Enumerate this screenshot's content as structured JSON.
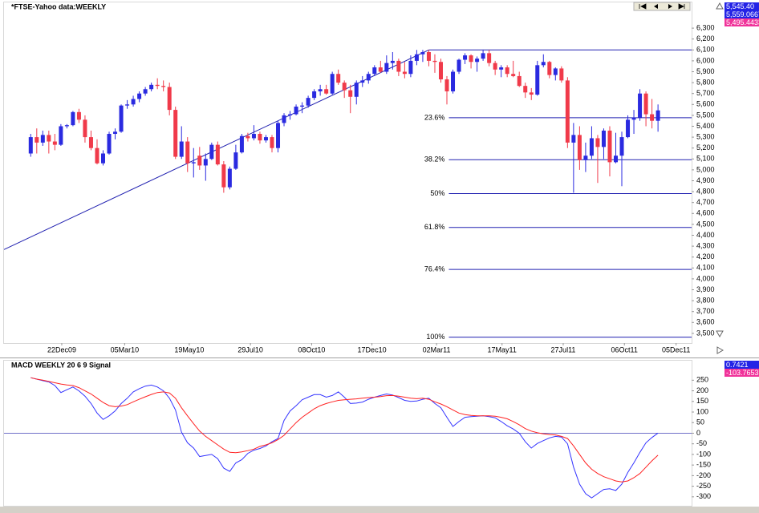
{
  "chart_data": {
    "type": "candlestick",
    "title": "*FTSE-Yahoo data:WEEKLY",
    "readouts": [
      {
        "label": "5,545.40",
        "color": "#2323e6"
      },
      {
        "label": "5,559.0667",
        "color": "#2323e6"
      },
      {
        "label": "5,495.4433",
        "color": "#f0339a"
      }
    ],
    "x": [
      "2009-11-16",
      "2009-11-23",
      "2009-11-30",
      "2009-12-07",
      "2009-12-14",
      "2009-12-21",
      "2009-12-28",
      "2010-01-04",
      "2010-01-11",
      "2010-01-18",
      "2010-01-25",
      "2010-02-01",
      "2010-02-08",
      "2010-02-15",
      "2010-02-22",
      "2010-03-01",
      "2010-03-08",
      "2010-03-15",
      "2010-03-22",
      "2010-03-29",
      "2010-04-05",
      "2010-04-12",
      "2010-04-19",
      "2010-04-26",
      "2010-05-03",
      "2010-05-10",
      "2010-05-17",
      "2010-05-24",
      "2010-05-31",
      "2010-06-07",
      "2010-06-14",
      "2010-06-21",
      "2010-06-28",
      "2010-07-05",
      "2010-07-12",
      "2010-07-19",
      "2010-07-26",
      "2010-08-02",
      "2010-08-09",
      "2010-08-16",
      "2010-08-23",
      "2010-08-30",
      "2010-09-06",
      "2010-09-13",
      "2010-09-20",
      "2010-09-27",
      "2010-10-04",
      "2010-10-11",
      "2010-10-18",
      "2010-10-25",
      "2010-11-01",
      "2010-11-08",
      "2010-11-15",
      "2010-11-22",
      "2010-11-29",
      "2010-12-06",
      "2010-12-13",
      "2010-12-20",
      "2010-12-27",
      "2011-01-03",
      "2011-01-10",
      "2011-01-17",
      "2011-01-24",
      "2011-01-31",
      "2011-02-07",
      "2011-02-14",
      "2011-02-21",
      "2011-02-28",
      "2011-03-07",
      "2011-03-14",
      "2011-03-21",
      "2011-03-28",
      "2011-04-04",
      "2011-04-11",
      "2011-04-18",
      "2011-04-25",
      "2011-05-02",
      "2011-05-09",
      "2011-05-16",
      "2011-05-23",
      "2011-05-30",
      "2011-06-06",
      "2011-06-13",
      "2011-06-20",
      "2011-06-27",
      "2011-07-04",
      "2011-07-11",
      "2011-07-18",
      "2011-07-25",
      "2011-08-01",
      "2011-08-08",
      "2011-08-15",
      "2011-08-22",
      "2011-08-29",
      "2011-09-05",
      "2011-09-12",
      "2011-09-19",
      "2011-09-26",
      "2011-10-03",
      "2011-10-10",
      "2011-10-17",
      "2011-10-24",
      "2011-10-31",
      "2011-11-07",
      "2011-11-14"
    ],
    "open": [
      5150,
      5300,
      5250,
      5320,
      5260,
      5230,
      5400,
      5410,
      5530,
      5460,
      5300,
      5200,
      5060,
      5150,
      5330,
      5350,
      5590,
      5600,
      5650,
      5700,
      5740,
      5780,
      5770,
      5760,
      5550,
      5120,
      5260,
      5060,
      5130,
      5040,
      5100,
      5230,
      5050,
      4840,
      5010,
      5160,
      5310,
      5290,
      5330,
      5270,
      5300,
      5200,
      5430,
      5500,
      5510,
      5580,
      5590,
      5660,
      5720,
      5740,
      5700,
      5880,
      5800,
      5730,
      5670,
      5800,
      5820,
      5880,
      5940,
      5900,
      5980,
      6000,
      5900,
      5880,
      6000,
      6060,
      6080,
      6000,
      5990,
      5830,
      5720,
      5900,
      6010,
      6050,
      5990,
      6020,
      6070,
      5980,
      5920,
      5940,
      5880,
      5860,
      5770,
      5710,
      5690,
      5960,
      5990,
      5870,
      5930,
      5820,
      5250,
      5320,
      5090,
      5130,
      5290,
      5210,
      5360,
      5070,
      5130,
      5300,
      5460,
      5480,
      5700,
      5510,
      5450
    ],
    "high": [
      5330,
      5380,
      5360,
      5360,
      5330,
      5420,
      5420,
      5540,
      5560,
      5500,
      5360,
      5280,
      5180,
      5350,
      5380,
      5600,
      5640,
      5680,
      5720,
      5760,
      5800,
      5840,
      5820,
      5800,
      5580,
      5400,
      5300,
      5200,
      5210,
      5150,
      5250,
      5260,
      5080,
      5030,
      5230,
      5330,
      5340,
      5410,
      5350,
      5320,
      5320,
      5450,
      5520,
      5540,
      5600,
      5620,
      5680,
      5740,
      5780,
      5780,
      5900,
      5920,
      5820,
      5780,
      5820,
      5860,
      5900,
      5960,
      6000,
      6050,
      6080,
      6020,
      5990,
      6050,
      6100,
      6100,
      6100,
      6060,
      6020,
      5860,
      5920,
      6020,
      6070,
      6060,
      6040,
      6100,
      6100,
      6000,
      5960,
      5960,
      6000,
      5900,
      5800,
      5750,
      6000,
      6060,
      6000,
      5940,
      5950,
      5850,
      5430,
      5400,
      5250,
      5400,
      5320,
      5380,
      5400,
      5340,
      5350,
      5500,
      5550,
      5740,
      5720,
      5650,
      5600
    ],
    "low": [
      5120,
      5150,
      5220,
      5150,
      5180,
      5220,
      5380,
      5400,
      5430,
      5250,
      5180,
      5050,
      5040,
      5140,
      5280,
      5340,
      5560,
      5580,
      5620,
      5680,
      5720,
      5740,
      5720,
      5500,
      5100,
      5100,
      4980,
      4930,
      5000,
      4900,
      5090,
      5040,
      4790,
      4820,
      5000,
      5150,
      5260,
      5270,
      5240,
      5250,
      5160,
      5160,
      5400,
      5460,
      5500,
      5520,
      5570,
      5640,
      5680,
      5690,
      5690,
      5780,
      5660,
      5520,
      5600,
      5760,
      5790,
      5860,
      5890,
      5880,
      5920,
      5860,
      5840,
      5850,
      5960,
      5990,
      5950,
      5890,
      5800,
      5600,
      5700,
      5880,
      5970,
      5930,
      5900,
      6000,
      5950,
      5870,
      5850,
      5850,
      5850,
      5760,
      5660,
      5640,
      5680,
      5940,
      5840,
      5820,
      5800,
      5200,
      4790,
      5000,
      4980,
      5100,
      4880,
      5100,
      4940,
      5060,
      4850,
      5290,
      5330,
      5450,
      5400,
      5380,
      5350
    ],
    "close": [
      5300,
      5250,
      5320,
      5260,
      5230,
      5400,
      5410,
      5530,
      5460,
      5300,
      5200,
      5060,
      5150,
      5330,
      5350,
      5590,
      5600,
      5650,
      5700,
      5740,
      5780,
      5770,
      5760,
      5550,
      5120,
      5260,
      5060,
      5070,
      5040,
      5100,
      5230,
      5050,
      4840,
      5010,
      5160,
      5310,
      5290,
      5330,
      5270,
      5300,
      5200,
      5430,
      5500,
      5510,
      5580,
      5590,
      5660,
      5720,
      5740,
      5700,
      5880,
      5800,
      5730,
      5670,
      5800,
      5820,
      5880,
      5940,
      5900,
      5980,
      6000,
      5900,
      5880,
      6000,
      6060,
      6080,
      6000,
      5990,
      5830,
      5720,
      5900,
      6010,
      6050,
      5990,
      6020,
      6070,
      5980,
      5920,
      5940,
      5880,
      5860,
      5770,
      5710,
      5690,
      5960,
      5990,
      5870,
      5930,
      5820,
      5250,
      5320,
      5090,
      5130,
      5290,
      5210,
      5360,
      5070,
      5130,
      5300,
      5460,
      5480,
      5700,
      5510,
      5450,
      5545.4
    ],
    "up_color": "#2a2ae0",
    "down_color": "#f03a4a",
    "xlim": [
      "2009-10-16",
      "2011-12-23"
    ],
    "xticks": [
      {
        "value": "2009-12-22",
        "label": "22Dec09"
      },
      {
        "value": "2010-03-05",
        "label": "05Mar10"
      },
      {
        "value": "2010-05-19",
        "label": "19May10"
      },
      {
        "value": "2010-07-29",
        "label": "29Jul10"
      },
      {
        "value": "2010-10-08",
        "label": "08Oct10"
      },
      {
        "value": "2010-12-17",
        "label": "17Dec10"
      },
      {
        "value": "2011-03-02",
        "label": "02Mar11"
      },
      {
        "value": "2011-05-17",
        "label": "17May11"
      },
      {
        "value": "2011-07-27",
        "label": "27Jul11"
      },
      {
        "value": "2011-10-06",
        "label": "06Oct11"
      },
      {
        "value": "2011-12-05",
        "label": "05Dec11"
      }
    ],
    "ylim": [
      3411,
      6536
    ],
    "yticks": [
      {
        "value": 6300,
        "label": "6,300"
      },
      {
        "value": 6200,
        "label": "6,200"
      },
      {
        "value": 6100,
        "label": "6,100"
      },
      {
        "value": 6000,
        "label": "6,000"
      },
      {
        "value": 5900,
        "label": "5,900"
      },
      {
        "value": 5800,
        "label": "5,800"
      },
      {
        "value": 5700,
        "label": "5,700"
      },
      {
        "value": 5600,
        "label": "5,600"
      },
      {
        "value": 5500,
        "label": "5,500"
      },
      {
        "value": 5400,
        "label": "5,400"
      },
      {
        "value": 5300,
        "label": "5,300"
      },
      {
        "value": 5200,
        "label": "5,200"
      },
      {
        "value": 5100,
        "label": "5,100"
      },
      {
        "value": 5000,
        "label": "5,000"
      },
      {
        "value": 4900,
        "label": "4,900"
      },
      {
        "value": 4800,
        "label": "4,800"
      },
      {
        "value": 4700,
        "label": "4,700"
      },
      {
        "value": 4600,
        "label": "4,600"
      },
      {
        "value": 4500,
        "label": "4,500"
      },
      {
        "value": 4400,
        "label": "4,400"
      },
      {
        "value": 4300,
        "label": "4,300"
      },
      {
        "value": 4200,
        "label": "4,200"
      },
      {
        "value": 4100,
        "label": "4,100"
      },
      {
        "value": 4000,
        "label": "4,000"
      },
      {
        "value": 3900,
        "label": "3,900"
      },
      {
        "value": 3800,
        "label": "3,800"
      },
      {
        "value": 3700,
        "label": "3,700"
      },
      {
        "value": 3600,
        "label": "3,600"
      },
      {
        "value": 3500,
        "label": "3,500"
      }
    ],
    "trendline": {
      "x": [
        "2009-10-16",
        "2011-02-21"
      ],
      "values": [
        4269,
        6100
      ],
      "color": "#2020b0"
    },
    "fibonacci": {
      "high": 6100,
      "color": "#2020b0",
      "levels": [
        {
          "label": "23.6%",
          "value": 5478
        },
        {
          "label": "38.2%",
          "value": 5093
        },
        {
          "label": "50%",
          "value": 4782
        },
        {
          "label": "61.8%",
          "value": 4472
        },
        {
          "label": "76.4%",
          "value": 4087
        },
        {
          "label": "100%",
          "value": 3465
        }
      ]
    },
    "macd": {
      "type": "line",
      "title": "MACD WEEKLY 20 6 9 Signal",
      "readouts": [
        {
          "label": "0.7421",
          "color": "#2323e6"
        },
        {
          "label": "-103.7653",
          "color": "#f0339a"
        }
      ],
      "series": [
        {
          "color": "#3434ff",
          "values": [
            262,
            255,
            248,
            242,
            225,
            192,
            205,
            218,
            200,
            175,
            140,
            95,
            65,
            82,
            105,
            140,
            165,
            195,
            210,
            222,
            227,
            218,
            200,
            165,
            110,
            5,
            -45,
            -70,
            -110,
            -105,
            -100,
            -120,
            -165,
            -180,
            -140,
            -125,
            -95,
            -80,
            -72,
            -60,
            -40,
            -25,
            60,
            105,
            130,
            158,
            170,
            182,
            182,
            170,
            178,
            195,
            170,
            140,
            142,
            147,
            160,
            170,
            178,
            185,
            180,
            168,
            155,
            150,
            152,
            160,
            165,
            140,
            120,
            75,
            32,
            55,
            75,
            78,
            80,
            82,
            78,
            73,
            55,
            35,
            20,
            0,
            -40,
            -70,
            -48,
            -35,
            -22,
            -15,
            -18,
            -50,
            -160,
            -240,
            -285,
            -305,
            -285,
            -265,
            -262,
            -270,
            -240,
            -185,
            -140,
            -90,
            -45,
            -20,
            0.7421
          ]
        },
        {
          "color": "#ff2222",
          "values": [
            262,
            255,
            250,
            244,
            238,
            232,
            228,
            225,
            215,
            200,
            185,
            165,
            145,
            130,
            125,
            128,
            135,
            148,
            160,
            172,
            183,
            192,
            195,
            190,
            165,
            120,
            82,
            45,
            10,
            -15,
            -35,
            -55,
            -75,
            -90,
            -92,
            -88,
            -82,
            -75,
            -62,
            -55,
            -45,
            -30,
            -10,
            20,
            50,
            75,
            95,
            115,
            130,
            140,
            148,
            155,
            158,
            160,
            162,
            165,
            168,
            170,
            173,
            177,
            178,
            175,
            170,
            165,
            163,
            165,
            160,
            148,
            138,
            125,
            110,
            95,
            88,
            84,
            82,
            82,
            82,
            80,
            75,
            68,
            55,
            40,
            22,
            10,
            2,
            -3,
            -6,
            -8,
            -15,
            -25,
            -60,
            -100,
            -140,
            -170,
            -190,
            -205,
            -215,
            -225,
            -230,
            -225,
            -210,
            -190,
            -160,
            -130,
            -103.7653
          ]
        }
      ],
      "ylim": [
        -346,
        342
      ],
      "yticks": [
        250,
        200,
        150,
        100,
        50,
        0,
        -50,
        -100,
        -150,
        -200,
        -250,
        -300
      ],
      "zero_line": true
    }
  }
}
